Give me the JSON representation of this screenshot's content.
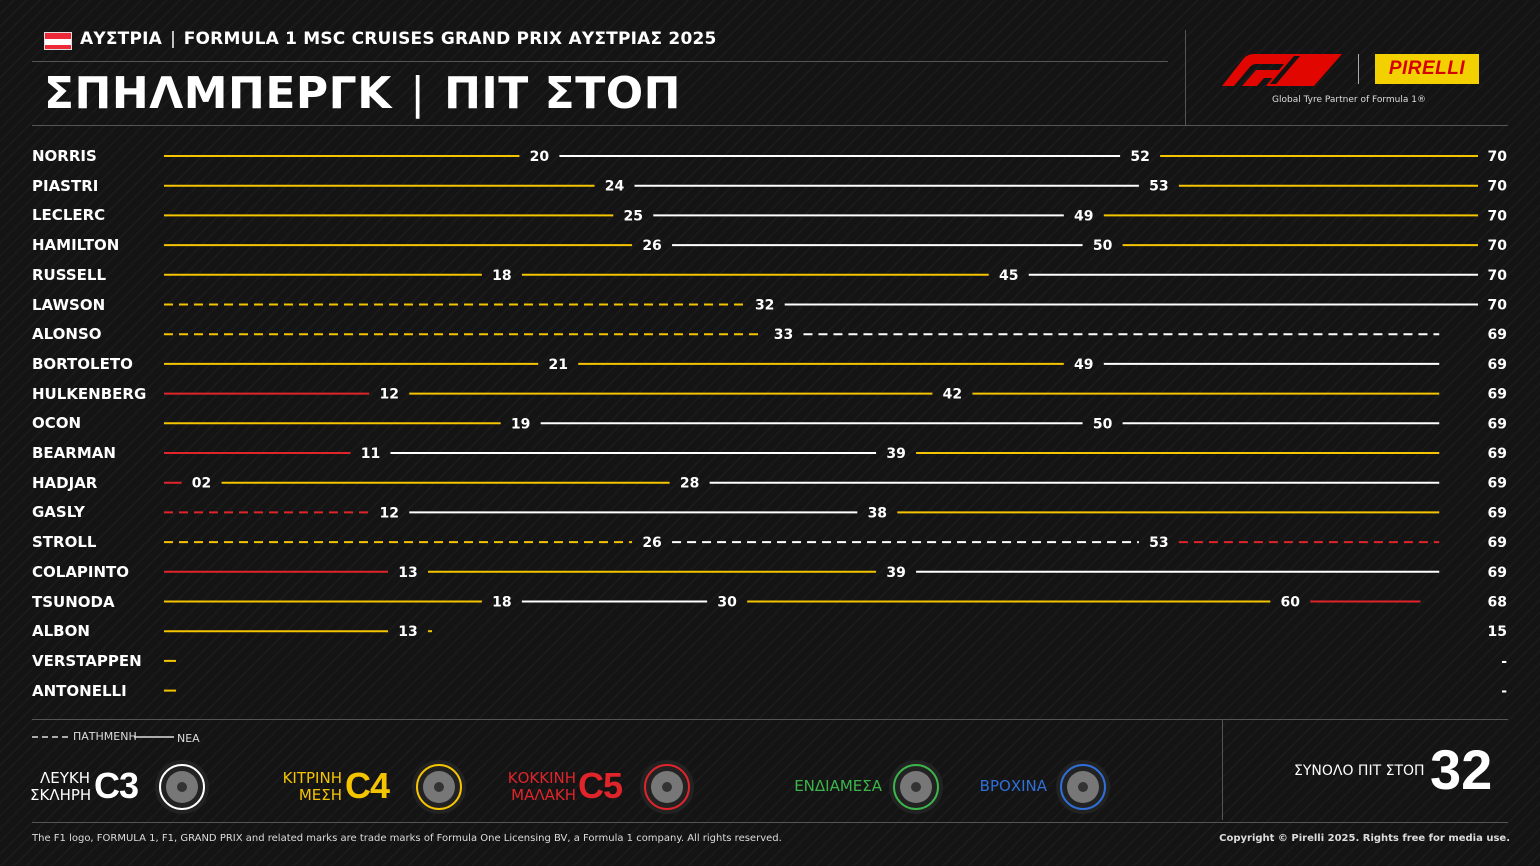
{
  "header": {
    "country": "ΑΥΣΤΡΙΑ",
    "event": "FORMULA 1 MSC CRUISES GRAND PRIX ΑΥΣΤΡΙΑΣ 2025",
    "circuit": "ΣΠΗΛΜΠΕΡΓΚ",
    "section": "ΠΙΤ ΣΤΟΠ",
    "partner_tagline": "Global Tyre Partner of Formula 1®",
    "pirelli_logo": "PIRELLI",
    "flag_colors": [
      "#ed2939",
      "#ffffff",
      "#ed2939"
    ]
  },
  "colors": {
    "C3": "#ffffff",
    "C4": "#f5c400",
    "C5": "#e0242a",
    "INT": "#3bb54a",
    "WET": "#2f6fd8",
    "accent_f1": "#e10600"
  },
  "chart_data": {
    "type": "stint-timeline",
    "x_range": [
      0,
      70
    ],
    "drivers": [
      {
        "name": "NORRIS",
        "final_lap": "70",
        "stints": [
          {
            "compound": "C4",
            "start": 0,
            "end": 20,
            "used": false
          },
          {
            "compound": "C3",
            "start": 20,
            "end": 52,
            "used": false
          },
          {
            "compound": "C4",
            "start": 52,
            "end": 70,
            "used": false
          }
        ]
      },
      {
        "name": "PIASTRI",
        "final_lap": "70",
        "stints": [
          {
            "compound": "C4",
            "start": 0,
            "end": 24,
            "used": false
          },
          {
            "compound": "C3",
            "start": 24,
            "end": 53,
            "used": false
          },
          {
            "compound": "C4",
            "start": 53,
            "end": 70,
            "used": false
          }
        ]
      },
      {
        "name": "LECLERC",
        "final_lap": "70",
        "stints": [
          {
            "compound": "C4",
            "start": 0,
            "end": 25,
            "used": false
          },
          {
            "compound": "C3",
            "start": 25,
            "end": 49,
            "used": false
          },
          {
            "compound": "C4",
            "start": 49,
            "end": 70,
            "used": false
          }
        ]
      },
      {
        "name": "HAMILTON",
        "final_lap": "70",
        "stints": [
          {
            "compound": "C4",
            "start": 0,
            "end": 26,
            "used": false
          },
          {
            "compound": "C3",
            "start": 26,
            "end": 50,
            "used": false
          },
          {
            "compound": "C4",
            "start": 50,
            "end": 70,
            "used": false
          }
        ]
      },
      {
        "name": "RUSSELL",
        "final_lap": "70",
        "stints": [
          {
            "compound": "C4",
            "start": 0,
            "end": 18,
            "used": false
          },
          {
            "compound": "C4",
            "start": 18,
            "end": 45,
            "used": false
          },
          {
            "compound": "C3",
            "start": 45,
            "end": 70,
            "used": false
          }
        ]
      },
      {
        "name": "LAWSON",
        "final_lap": "70",
        "stints": [
          {
            "compound": "C4",
            "start": 0,
            "end": 32,
            "used": true
          },
          {
            "compound": "C3",
            "start": 32,
            "end": 70,
            "used": false
          }
        ]
      },
      {
        "name": "ALONSO",
        "final_lap": "69",
        "stints": [
          {
            "compound": "C4",
            "start": 0,
            "end": 33,
            "used": true
          },
          {
            "compound": "C3",
            "start": 33,
            "end": 69,
            "used": true
          }
        ]
      },
      {
        "name": "BORTOLETO",
        "final_lap": "69",
        "stints": [
          {
            "compound": "C4",
            "start": 0,
            "end": 21,
            "used": false
          },
          {
            "compound": "C4",
            "start": 21,
            "end": 49,
            "used": false
          },
          {
            "compound": "C3",
            "start": 49,
            "end": 69,
            "used": false
          }
        ]
      },
      {
        "name": "HULKENBERG",
        "final_lap": "69",
        "stints": [
          {
            "compound": "C5",
            "start": 0,
            "end": 12,
            "used": false
          },
          {
            "compound": "C4",
            "start": 12,
            "end": 42,
            "used": false
          },
          {
            "compound": "C4",
            "start": 42,
            "end": 69,
            "used": false
          }
        ]
      },
      {
        "name": "OCON",
        "final_lap": "69",
        "stints": [
          {
            "compound": "C4",
            "start": 0,
            "end": 19,
            "used": false
          },
          {
            "compound": "C3",
            "start": 19,
            "end": 50,
            "used": false
          },
          {
            "compound": "C3",
            "start": 50,
            "end": 69,
            "used": false
          }
        ]
      },
      {
        "name": "BEARMAN",
        "final_lap": "69",
        "stints": [
          {
            "compound": "C5",
            "start": 0,
            "end": 11,
            "used": false
          },
          {
            "compound": "C3",
            "start": 11,
            "end": 39,
            "used": false
          },
          {
            "compound": "C4",
            "start": 39,
            "end": 69,
            "used": false
          }
        ]
      },
      {
        "name": "HADJAR",
        "final_lap": "69",
        "stints": [
          {
            "compound": "C5",
            "start": 0,
            "end": 2,
            "used": false,
            "pit_label": "02"
          },
          {
            "compound": "C4",
            "start": 2,
            "end": 28,
            "used": false
          },
          {
            "compound": "C3",
            "start": 28,
            "end": 69,
            "used": false
          }
        ]
      },
      {
        "name": "GASLY",
        "final_lap": "69",
        "stints": [
          {
            "compound": "C5",
            "start": 0,
            "end": 12,
            "used": true
          },
          {
            "compound": "C3",
            "start": 12,
            "end": 38,
            "used": false
          },
          {
            "compound": "C4",
            "start": 38,
            "end": 69,
            "used": false
          }
        ]
      },
      {
        "name": "STROLL",
        "final_lap": "69",
        "stints": [
          {
            "compound": "C4",
            "start": 0,
            "end": 26,
            "used": true
          },
          {
            "compound": "C3",
            "start": 26,
            "end": 53,
            "used": true
          },
          {
            "compound": "C5",
            "start": 53,
            "end": 69,
            "used": true
          }
        ]
      },
      {
        "name": "COLAPINTO",
        "final_lap": "69",
        "stints": [
          {
            "compound": "C5",
            "start": 0,
            "end": 13,
            "used": false
          },
          {
            "compound": "C4",
            "start": 13,
            "end": 39,
            "used": false
          },
          {
            "compound": "C3",
            "start": 39,
            "end": 69,
            "used": false
          }
        ]
      },
      {
        "name": "TSUNODA",
        "final_lap": "68",
        "stints": [
          {
            "compound": "C4",
            "start": 0,
            "end": 18,
            "used": false
          },
          {
            "compound": "C3",
            "start": 18,
            "end": 30,
            "used": false
          },
          {
            "compound": "C4",
            "start": 30,
            "end": 60,
            "used": false
          },
          {
            "compound": "C5",
            "start": 60,
            "end": 68,
            "used": false
          }
        ]
      },
      {
        "name": "ALBON",
        "final_lap": "15",
        "stints": [
          {
            "compound": "C4",
            "start": 0,
            "end": 13,
            "used": false
          },
          {
            "compound": "C4",
            "start": 13,
            "end": 15,
            "used": false
          }
        ]
      },
      {
        "name": "VERSTAPPEN",
        "final_lap": "-",
        "stints": [
          {
            "compound": "C4",
            "start": 0,
            "end": 0.5,
            "used": false
          }
        ]
      },
      {
        "name": "ANTONELLI",
        "final_lap": "-",
        "stints": [
          {
            "compound": "C4",
            "start": 0,
            "end": 0.5,
            "used": false
          }
        ]
      }
    ]
  },
  "legend": {
    "used_label": "ΠΑΤΗΜΕΝΗ",
    "new_label": "ΝΕΑ",
    "tyres": [
      {
        "line1": "ΛΕΥΚΗ",
        "line2": "ΣΚΛΗΡΗ",
        "compound": "C3",
        "color": "#ffffff"
      },
      {
        "line1": "ΚΙΤΡΙΝΗ",
        "line2": "ΜΕΣΗ",
        "compound": "C4",
        "color": "#f5c400"
      },
      {
        "line1": "ΚΟΚΚΙΝΗ",
        "line2": "ΜΑΛΑΚΗ",
        "compound": "C5",
        "color": "#e0242a"
      },
      {
        "line1": "ΕΝΔΙΑΜΕΣΑ",
        "line2": "",
        "compound": "",
        "color": "#3bb54a"
      },
      {
        "line1": "ΒΡΟΧΙΝΑ",
        "line2": "",
        "compound": "",
        "color": "#2f6fd8"
      }
    ],
    "total_label": "ΣΥΝΟΛΟ ΠΙΤ ΣΤΟΠ",
    "total_value": "32"
  },
  "footer": {
    "disclaimer": "The F1 logo, FORMULA 1, F1, GRAND PRIX and related marks are trade marks of Formula One Licensing BV, a Formula 1 company. All rights reserved.",
    "copyright": "Copyright © Pirelli 2025. Rights free for media use."
  }
}
